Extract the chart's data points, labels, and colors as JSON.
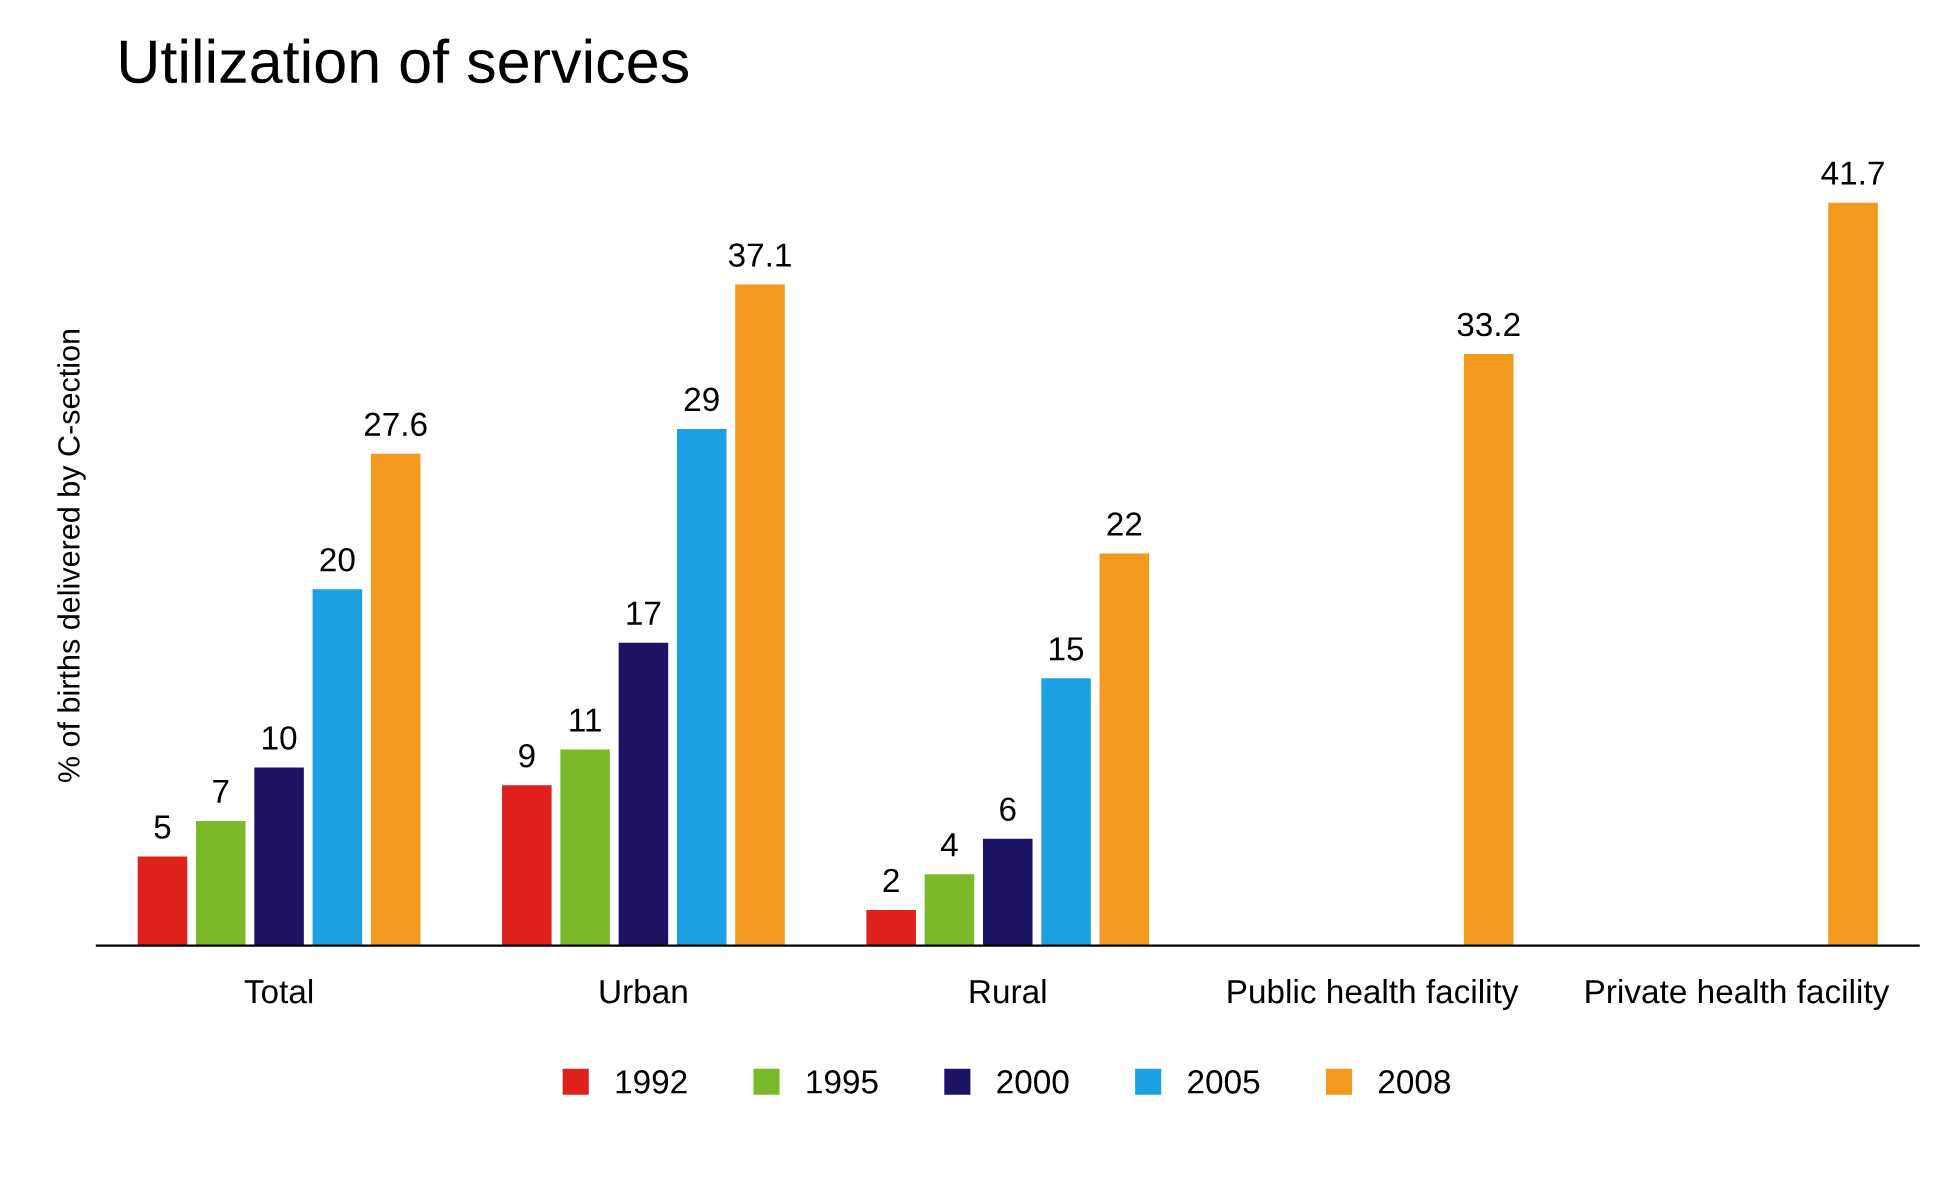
{
  "chart_data": {
    "type": "bar",
    "title": "Utilization of services",
    "ylabel": "% of births delivered by C-section",
    "categories": [
      "Total",
      "Urban",
      "Rural",
      "Public health facility",
      "Private health facility"
    ],
    "series": [
      {
        "name": "1992",
        "color": "#e0201b",
        "values": [
          5,
          9,
          2,
          null,
          null
        ]
      },
      {
        "name": "1995",
        "color": "#7ab929",
        "values": [
          7,
          11,
          4,
          null,
          null
        ]
      },
      {
        "name": "2000",
        "color": "#1b1464",
        "values": [
          10,
          17,
          6,
          null,
          null
        ]
      },
      {
        "name": "2005",
        "color": "#1ba1e2",
        "values": [
          20,
          29,
          15,
          null,
          null
        ]
      },
      {
        "name": "2008",
        "color": "#f39a1e",
        "values": [
          27.6,
          37.1,
          22,
          33.2,
          41.7
        ]
      }
    ],
    "data_labels": true,
    "legend": "bottom",
    "grid": false,
    "tick_labels": "x"
  }
}
